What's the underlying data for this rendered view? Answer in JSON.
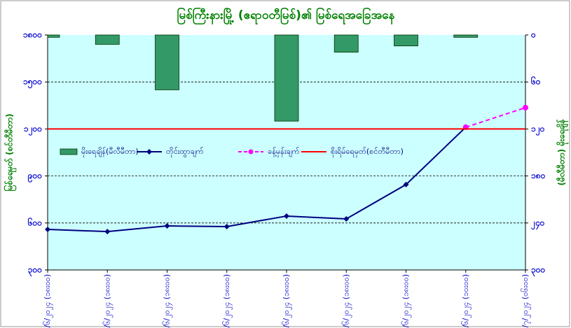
{
  "chart_data": {
    "type": "combo",
    "title": "မြစ်ကြီးနားမြို့ (ဧရာဝတီမြစ်)၏ မြစ်ရေအခြေအနေ",
    "y_label": "မြစ်ရေမှတ် (စင်တီမီတာ)",
    "y2_label": "(မီလီမီတာ) မိုးရေချိန်",
    "categories": [
      "၂၃/၆/၂၀၂၄ (၁၈း၀၀)",
      "၂၄/၆/၂၀၂၄ (၁၈း၀၀)",
      "၂၅/၆/၂၀၂၄ (၁၈း၀၀)",
      "၂၆/၆/၂၀၂၄ (၁၈း၀၀)",
      "၂၇/၆/၂၀၂၄ (၁၈း၀၀)",
      "၂၈/၆/၂၀၂၄ (၁၈း၀၀)",
      "၂၉/၆/၂၀၂၄ (၁၈း၀၀)",
      "၃၀/၆/၂၀၂၄ (၁၀း၀၀)",
      "၁/၇/၂၀၂၄ (၀၆း၀၀)"
    ],
    "ylim": [
      300,
      1800
    ],
    "yticks": [
      {
        "value": 300,
        "label": "၃၀၀"
      },
      {
        "value": 600,
        "label": "၆၀၀"
      },
      {
        "value": 900,
        "label": "၉၀၀"
      },
      {
        "value": 1200,
        "label": "၁၂၀၀"
      },
      {
        "value": 1500,
        "label": "၁၅၀၀"
      },
      {
        "value": 1800,
        "label": "၁၈၀၀"
      }
    ],
    "y2lim": [
      0,
      300
    ],
    "y2_inverted": true,
    "y2ticks": [
      {
        "value": 0,
        "label": "၀"
      },
      {
        "value": 60,
        "label": "၆၀"
      },
      {
        "value": 120,
        "label": "၁၂၀"
      },
      {
        "value": 180,
        "label": "၁၈၀"
      },
      {
        "value": 240,
        "label": "၂၄၀"
      },
      {
        "value": 300,
        "label": "၃၀၀"
      }
    ],
    "grid": true,
    "series": [
      {
        "name": "မိုးရေချိန်(မီလီမီတာ)",
        "type": "bar",
        "axis": "y2",
        "color": "#339966",
        "values": [
          3,
          12,
          70,
          0,
          110,
          22,
          14,
          3,
          null
        ]
      },
      {
        "name": "တိုင်းထွာချက်",
        "type": "line",
        "color": "#000080",
        "values": [
          559,
          545,
          581,
          577,
          644,
          626,
          845,
          1211,
          null
        ]
      },
      {
        "name": "ခန့်မှန်းချက်",
        "type": "dashed-line",
        "color": "#ff00ff",
        "values": [
          null,
          null,
          null,
          null,
          null,
          null,
          null,
          1211,
          1336
        ]
      },
      {
        "name": "စိုးရိမ်ရေမှတ်(စင်တီမီတာ)",
        "type": "hline",
        "color": "#ff0000",
        "value": 1200
      }
    ]
  }
}
